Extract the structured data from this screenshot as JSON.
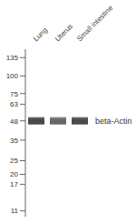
{
  "chart_data": {
    "type": "scatter",
    "categories": [
      "Lung",
      "Uterus",
      "Small intestine"
    ],
    "values": [
      48,
      48,
      48
    ],
    "colors": [
      "#4a4845",
      "#6a6865",
      "#4c4a47"
    ],
    "log": "y",
    "ylim": [
      10,
      155
    ],
    "yticks": [
      135,
      100,
      75,
      63,
      48,
      35,
      25,
      20,
      17,
      11
    ],
    "marker": "band",
    "annotation": "beta-Actin",
    "grid": false
  }
}
